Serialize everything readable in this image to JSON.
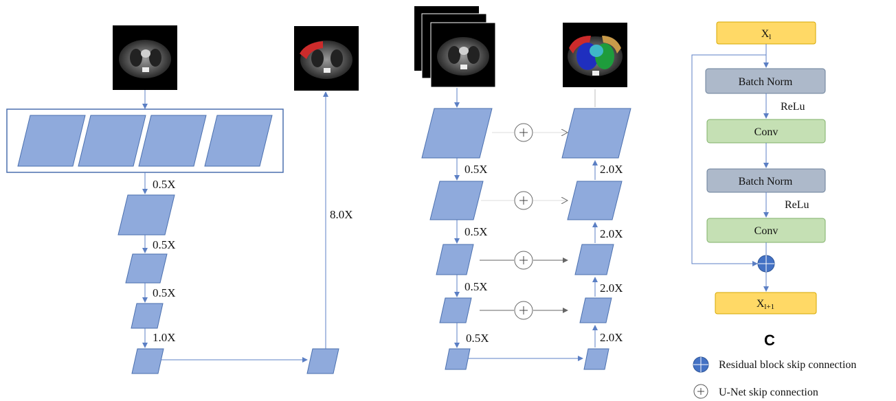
{
  "panel_a": {
    "scale_labels": [
      "0.5X",
      "0.5X",
      "0.5X",
      "1.0X"
    ],
    "upsample_label": "8.0X"
  },
  "panel_b": {
    "down_labels": [
      "0.5X",
      "0.5X",
      "0.5X",
      "0.5X"
    ],
    "up_labels": [
      "2.0X",
      "2.0X",
      "2.0X",
      "2.0X"
    ]
  },
  "panel_c": {
    "input_label": "X",
    "input_sub": "l",
    "batch_norm_1": "Batch Norm",
    "relu_1": "ReLu",
    "conv_1": "Conv",
    "batch_norm_2": "Batch Norm",
    "relu_2": "ReLu",
    "conv_2": "Conv",
    "output_label": "X",
    "output_sub": "l+1",
    "panel_letter": "C"
  },
  "legend": {
    "residual": "Residual block skip connection",
    "unet": "U-Net skip connection"
  },
  "colors": {
    "block_fill": "#8faadc",
    "block_stroke": "#4a6fae",
    "arrow": "#5b7fc4",
    "yellow": "#ffd966",
    "yellow_stroke": "#d6a800",
    "gray": "#adb9ca",
    "gray_stroke": "#6a7f99",
    "green": "#c5e0b4",
    "green_stroke": "#7fb069",
    "residual_dot": "#4472c4"
  }
}
